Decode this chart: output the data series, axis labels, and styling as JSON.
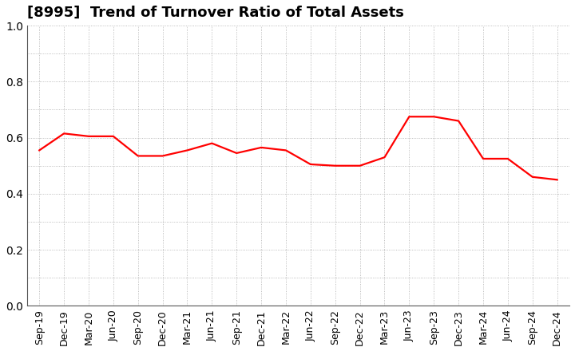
{
  "title": "[8995]  Trend of Turnover Ratio of Total Assets",
  "x_labels": [
    "Sep-19",
    "Dec-19",
    "Mar-20",
    "Jun-20",
    "Sep-20",
    "Dec-20",
    "Mar-21",
    "Jun-21",
    "Sep-21",
    "Dec-21",
    "Mar-22",
    "Jun-22",
    "Sep-22",
    "Dec-22",
    "Mar-23",
    "Jun-23",
    "Sep-23",
    "Dec-23",
    "Mar-24",
    "Jun-24",
    "Sep-24",
    "Dec-24"
  ],
  "y_values": [
    0.555,
    0.615,
    0.605,
    0.605,
    0.535,
    0.535,
    0.555,
    0.58,
    0.545,
    0.565,
    0.555,
    0.505,
    0.5,
    0.5,
    0.53,
    0.675,
    0.675,
    0.66,
    0.525,
    0.525,
    0.46,
    0.45
  ],
  "ylim": [
    0.0,
    1.0
  ],
  "yticks": [
    0.0,
    0.2,
    0.4,
    0.6,
    0.8,
    1.0
  ],
  "line_color": "#ff0000",
  "line_width": 1.6,
  "grid_color": "#aaaaaa",
  "background_color": "#ffffff",
  "title_fontsize": 13,
  "tick_fontsize": 9
}
